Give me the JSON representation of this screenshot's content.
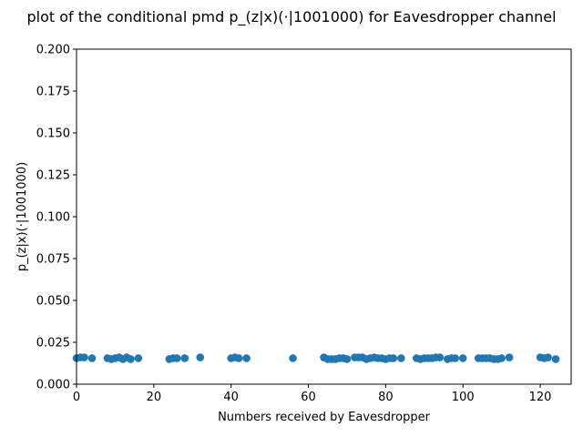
{
  "chart_data": {
    "type": "scatter",
    "title": "plot of the conditional pmd p_(z|x)(·|1001000) for Eavesdropper channel",
    "xlabel": "Numbers received by Eavesdropper",
    "ylabel": "p_(z|x)(·|1001000)",
    "xlim": [
      0,
      128
    ],
    "ylim": [
      0,
      0.2
    ],
    "x_ticks": [
      0,
      20,
      40,
      60,
      80,
      100,
      120
    ],
    "x_tick_labels": [
      "0",
      "20",
      "40",
      "60",
      "80",
      "100",
      "120"
    ],
    "y_ticks": [
      0,
      0.025,
      0.05,
      0.075,
      0.1,
      0.125,
      0.15,
      0.175,
      0.2
    ],
    "y_tick_labels": [
      "0.000",
      "0.025",
      "0.050",
      "0.075",
      "0.100",
      "0.125",
      "0.150",
      "0.175",
      "0.200"
    ],
    "grid": false,
    "marker_color": "#1f77b4",
    "points": [
      {
        "x": 0,
        "y": 0.0155
      },
      {
        "x": 1,
        "y": 0.016
      },
      {
        "x": 2,
        "y": 0.016
      },
      {
        "x": 4,
        "y": 0.0155
      },
      {
        "x": 8,
        "y": 0.0155
      },
      {
        "x": 9,
        "y": 0.015
      },
      {
        "x": 10,
        "y": 0.0155
      },
      {
        "x": 11,
        "y": 0.016
      },
      {
        "x": 12,
        "y": 0.015
      },
      {
        "x": 13,
        "y": 0.016
      },
      {
        "x": 14,
        "y": 0.015
      },
      {
        "x": 16,
        "y": 0.0155
      },
      {
        "x": 24,
        "y": 0.015
      },
      {
        "x": 25,
        "y": 0.0155
      },
      {
        "x": 26,
        "y": 0.0155
      },
      {
        "x": 28,
        "y": 0.0155
      },
      {
        "x": 32,
        "y": 0.016
      },
      {
        "x": 40,
        "y": 0.0155
      },
      {
        "x": 41,
        "y": 0.016
      },
      {
        "x": 42,
        "y": 0.0155
      },
      {
        "x": 44,
        "y": 0.0155
      },
      {
        "x": 56,
        "y": 0.0155
      },
      {
        "x": 64,
        "y": 0.016
      },
      {
        "x": 65,
        "y": 0.015
      },
      {
        "x": 66,
        "y": 0.015
      },
      {
        "x": 67,
        "y": 0.015
      },
      {
        "x": 68,
        "y": 0.0155
      },
      {
        "x": 69,
        "y": 0.0155
      },
      {
        "x": 70,
        "y": 0.015
      },
      {
        "x": 72,
        "y": 0.016
      },
      {
        "x": 73,
        "y": 0.016
      },
      {
        "x": 74,
        "y": 0.016
      },
      {
        "x": 75,
        "y": 0.015
      },
      {
        "x": 76,
        "y": 0.0155
      },
      {
        "x": 77,
        "y": 0.016
      },
      {
        "x": 78,
        "y": 0.0155
      },
      {
        "x": 79,
        "y": 0.0155
      },
      {
        "x": 80,
        "y": 0.015
      },
      {
        "x": 81,
        "y": 0.0155
      },
      {
        "x": 82,
        "y": 0.0155
      },
      {
        "x": 84,
        "y": 0.0155
      },
      {
        "x": 88,
        "y": 0.0155
      },
      {
        "x": 89,
        "y": 0.015
      },
      {
        "x": 90,
        "y": 0.0155
      },
      {
        "x": 91,
        "y": 0.0155
      },
      {
        "x": 92,
        "y": 0.0155
      },
      {
        "x": 93,
        "y": 0.016
      },
      {
        "x": 94,
        "y": 0.016
      },
      {
        "x": 96,
        "y": 0.015
      },
      {
        "x": 97,
        "y": 0.0155
      },
      {
        "x": 98,
        "y": 0.0155
      },
      {
        "x": 100,
        "y": 0.0155
      },
      {
        "x": 104,
        "y": 0.0155
      },
      {
        "x": 105,
        "y": 0.0155
      },
      {
        "x": 106,
        "y": 0.0155
      },
      {
        "x": 107,
        "y": 0.0155
      },
      {
        "x": 108,
        "y": 0.015
      },
      {
        "x": 109,
        "y": 0.015
      },
      {
        "x": 110,
        "y": 0.0155
      },
      {
        "x": 112,
        "y": 0.016
      },
      {
        "x": 120,
        "y": 0.016
      },
      {
        "x": 121,
        "y": 0.0155
      },
      {
        "x": 122,
        "y": 0.016
      },
      {
        "x": 124,
        "y": 0.015
      }
    ]
  }
}
